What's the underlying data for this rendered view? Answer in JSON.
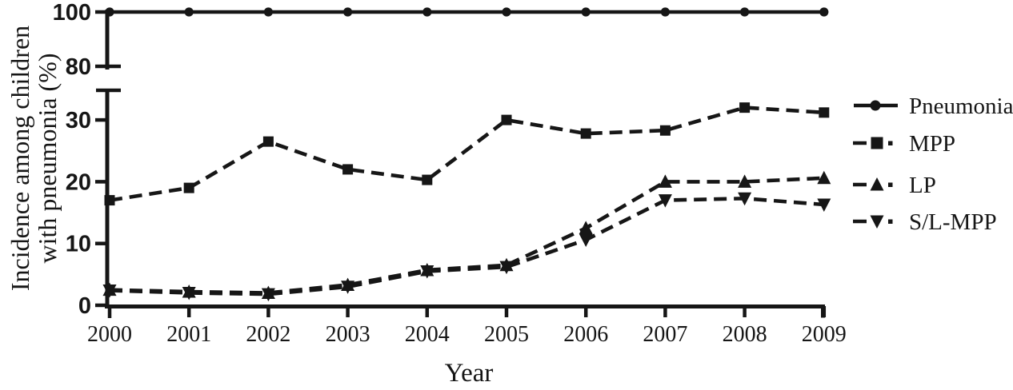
{
  "figure": {
    "background": "#ffffff",
    "ink_color": "#161616"
  },
  "chart_data": {
    "type": "line",
    "title": "",
    "xlabel": "Year",
    "ylabel": "Incidence among children with pneumonia (%)",
    "ylabel_lines": [
      "Incidence among children",
      "with pneumonia (%)"
    ],
    "x": [
      2000,
      2001,
      2002,
      2003,
      2004,
      2005,
      2006,
      2007,
      2008,
      2009
    ],
    "y_axis": {
      "broken": true,
      "unit": "%",
      "segments": [
        {
          "range": [
            0,
            35
          ],
          "ticks": [
            0,
            10,
            20,
            30
          ]
        },
        {
          "range": [
            80,
            100
          ],
          "ticks": [
            80,
            100
          ]
        }
      ]
    },
    "series": [
      {
        "name": "Pneumonia",
        "marker": "circle",
        "line_style": "solid",
        "values": [
          100,
          100,
          100,
          100,
          100,
          100,
          100,
          100,
          100,
          100
        ]
      },
      {
        "name": "MPP",
        "marker": "square",
        "line_style": "dashed",
        "values": [
          17,
          19,
          26.5,
          22,
          20.3,
          30,
          27.8,
          28.3,
          32,
          31.2
        ]
      },
      {
        "name": "LP",
        "marker": "triangle-up",
        "line_style": "dashed",
        "values": [
          2.5,
          2.2,
          2,
          3.3,
          5.7,
          6.5,
          12.5,
          20,
          20,
          20.6
        ]
      },
      {
        "name": "S/L-MPP",
        "marker": "triangle-down",
        "line_style": "dashed",
        "values": [
          2.4,
          2,
          1.8,
          3,
          5.5,
          6.2,
          10.6,
          17,
          17.3,
          16.3
        ]
      }
    ],
    "legend": {
      "position": "right",
      "entries": [
        "Pneumonia",
        "MPP",
        "LP",
        "S/L-MPP"
      ]
    },
    "grid": false
  }
}
